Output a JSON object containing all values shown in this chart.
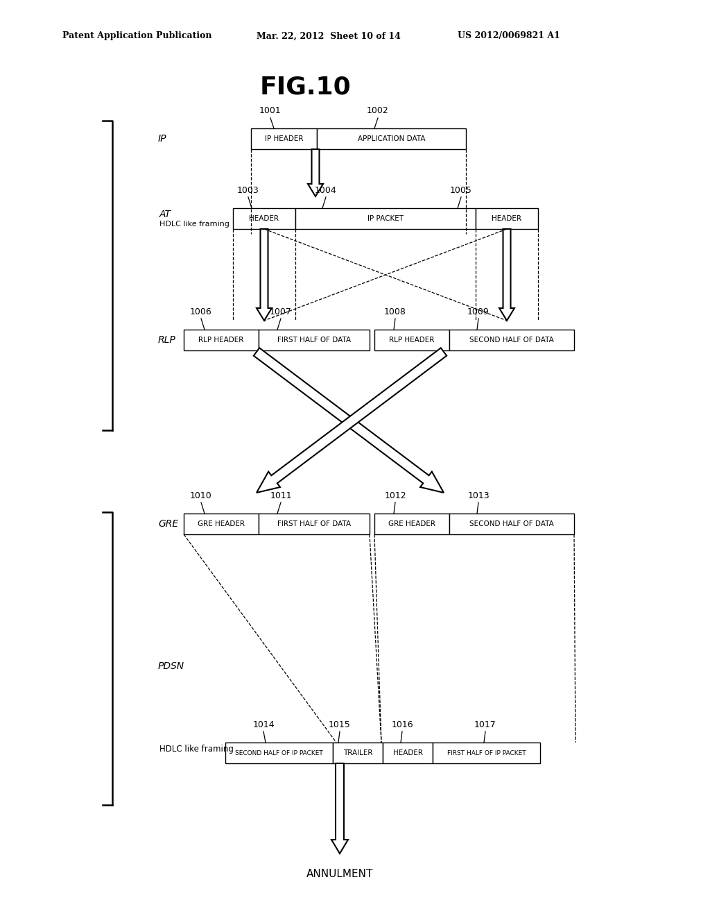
{
  "title": "FIG.10",
  "header_line1": "Patent Application Publication",
  "header_line2": "Mar. 22, 2012  Sheet 10 of 14",
  "header_line3": "US 2012/0069821 A1",
  "bg_color": "#ffffff",
  "text_color": "#000000"
}
